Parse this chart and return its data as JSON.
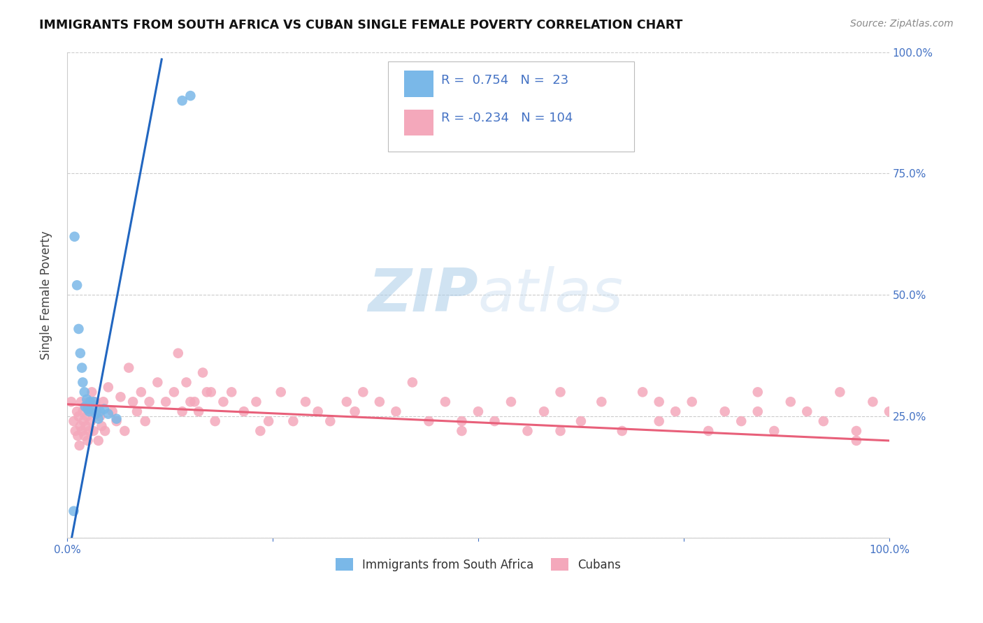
{
  "title": "IMMIGRANTS FROM SOUTH AFRICA VS CUBAN SINGLE FEMALE POVERTY CORRELATION CHART",
  "source": "Source: ZipAtlas.com",
  "ylabel": "Single Female Poverty",
  "watermark_zip": "ZIP",
  "watermark_atlas": "atlas",
  "blue_R": 0.754,
  "blue_N": 23,
  "pink_R": -0.234,
  "pink_N": 104,
  "blue_color": "#7ab8e8",
  "pink_color": "#f4a8bb",
  "blue_line_color": "#2166c0",
  "pink_line_color": "#e8607a",
  "stat_color": "#4472c4",
  "legend_label_blue": "Immigrants from South Africa",
  "legend_label_pink": "Cubans",
  "xlim": [
    0.0,
    1.0
  ],
  "ylim": [
    0.0,
    1.0
  ],
  "xtick_vals": [
    0.0,
    0.25,
    0.5,
    0.75,
    1.0
  ],
  "ytick_vals": [
    0.0,
    0.25,
    0.5,
    0.75,
    1.0
  ],
  "xticklabels": [
    "0.0%",
    "",
    "",
    "",
    "100.0%"
  ],
  "yticklabels_right": [
    "",
    "25.0%",
    "50.0%",
    "75.0%",
    "100.0%"
  ],
  "blue_slope": 9.0,
  "blue_intercept": -0.05,
  "blue_line_xstart": 0.004,
  "blue_line_xend": 0.115,
  "pink_slope": -0.075,
  "pink_intercept": 0.275,
  "pink_line_xstart": 0.0,
  "pink_line_xend": 1.0,
  "blue_x": [
    0.008,
    0.009,
    0.012,
    0.014,
    0.016,
    0.018,
    0.019,
    0.021,
    0.022,
    0.024,
    0.025,
    0.027,
    0.028,
    0.03,
    0.032,
    0.035,
    0.038,
    0.04,
    0.045,
    0.05,
    0.06,
    0.14,
    0.15
  ],
  "blue_y": [
    0.055,
    0.62,
    0.52,
    0.43,
    0.38,
    0.35,
    0.32,
    0.3,
    0.27,
    0.285,
    0.265,
    0.26,
    0.28,
    0.265,
    0.28,
    0.255,
    0.245,
    0.26,
    0.265,
    0.255,
    0.245,
    0.9,
    0.91
  ],
  "pink_x": [
    0.005,
    0.008,
    0.01,
    0.012,
    0.013,
    0.014,
    0.015,
    0.016,
    0.017,
    0.018,
    0.019,
    0.02,
    0.021,
    0.022,
    0.023,
    0.024,
    0.025,
    0.026,
    0.027,
    0.028,
    0.029,
    0.03,
    0.032,
    0.034,
    0.036,
    0.038,
    0.04,
    0.042,
    0.044,
    0.046,
    0.05,
    0.055,
    0.06,
    0.065,
    0.07,
    0.075,
    0.08,
    0.085,
    0.09,
    0.095,
    0.1,
    0.11,
    0.12,
    0.13,
    0.14,
    0.15,
    0.16,
    0.17,
    0.18,
    0.19,
    0.2,
    0.215,
    0.23,
    0.245,
    0.26,
    0.275,
    0.29,
    0.305,
    0.32,
    0.34,
    0.36,
    0.38,
    0.4,
    0.42,
    0.44,
    0.46,
    0.48,
    0.5,
    0.52,
    0.54,
    0.56,
    0.58,
    0.6,
    0.625,
    0.65,
    0.675,
    0.7,
    0.72,
    0.74,
    0.76,
    0.78,
    0.8,
    0.82,
    0.84,
    0.86,
    0.88,
    0.9,
    0.92,
    0.94,
    0.96,
    0.98,
    1.0,
    0.135,
    0.145,
    0.155,
    0.165,
    0.175,
    0.235,
    0.35,
    0.48,
    0.6,
    0.72,
    0.84,
    0.96
  ],
  "pink_y": [
    0.28,
    0.24,
    0.22,
    0.26,
    0.21,
    0.25,
    0.19,
    0.23,
    0.28,
    0.22,
    0.26,
    0.24,
    0.21,
    0.27,
    0.23,
    0.25,
    0.2,
    0.28,
    0.22,
    0.26,
    0.24,
    0.3,
    0.22,
    0.28,
    0.26,
    0.2,
    0.25,
    0.23,
    0.28,
    0.22,
    0.31,
    0.26,
    0.24,
    0.29,
    0.22,
    0.35,
    0.28,
    0.26,
    0.3,
    0.24,
    0.28,
    0.32,
    0.28,
    0.3,
    0.26,
    0.28,
    0.26,
    0.3,
    0.24,
    0.28,
    0.3,
    0.26,
    0.28,
    0.24,
    0.3,
    0.24,
    0.28,
    0.26,
    0.24,
    0.28,
    0.3,
    0.28,
    0.26,
    0.32,
    0.24,
    0.28,
    0.22,
    0.26,
    0.24,
    0.28,
    0.22,
    0.26,
    0.3,
    0.24,
    0.28,
    0.22,
    0.3,
    0.24,
    0.26,
    0.28,
    0.22,
    0.26,
    0.24,
    0.3,
    0.22,
    0.28,
    0.26,
    0.24,
    0.3,
    0.22,
    0.28,
    0.26,
    0.38,
    0.32,
    0.28,
    0.34,
    0.3,
    0.22,
    0.26,
    0.24,
    0.22,
    0.28,
    0.26,
    0.2
  ]
}
